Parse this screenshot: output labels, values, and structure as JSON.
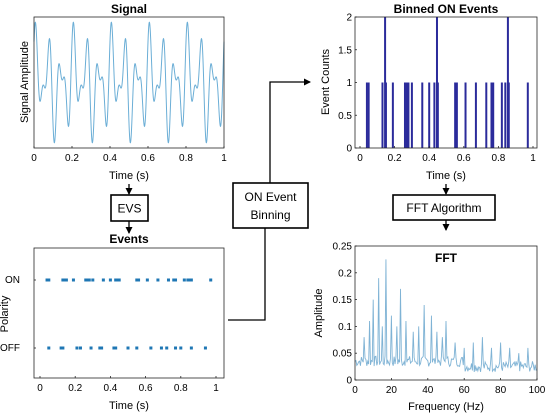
{
  "colors": {
    "signal": "#6baed6",
    "events": "#1f77b4",
    "bins": "#2b2b9b",
    "fft": "#7fb3d5"
  },
  "boxes": {
    "evs": "EVS",
    "binning_line1": "ON Event",
    "binning_line2": "Binning",
    "fft_algorithm": "FFT Algorithm"
  },
  "chart_data": [
    {
      "type": "line",
      "title": "Signal",
      "xlabel": "Time (s)",
      "ylabel": "Signal Amplitude",
      "xlim": [
        0,
        1
      ],
      "xticks": [
        "0",
        "0.2",
        "0.4",
        "0.6",
        "0.8",
        "1"
      ],
      "components": [
        {
          "frequency_hz": 15,
          "amplitude": 1.0
        },
        {
          "frequency_hz": 25,
          "amplitude": 0.6
        },
        {
          "frequency_hz": 5,
          "amplitude": 0.3
        }
      ]
    },
    {
      "type": "scatter",
      "title": "Events",
      "xlabel": "Time (s)",
      "ylabel": "Polarity",
      "xlim": [
        0,
        1
      ],
      "xticks": [
        "0",
        "0.2",
        "0.4",
        "0.6",
        "0.8",
        "1"
      ],
      "yticks": [
        "ON",
        "OFF"
      ],
      "on_events": [
        0.04,
        0.05,
        0.13,
        0.14,
        0.15,
        0.19,
        0.26,
        0.27,
        0.28,
        0.3,
        0.36,
        0.4,
        0.43,
        0.44,
        0.45,
        0.55,
        0.56,
        0.61,
        0.67,
        0.73,
        0.76,
        0.77,
        0.82,
        0.84,
        0.85,
        0.86,
        0.97
      ],
      "off_events": [
        0.05,
        0.12,
        0.13,
        0.21,
        0.23,
        0.29,
        0.34,
        0.35,
        0.42,
        0.43,
        0.5,
        0.55,
        0.63,
        0.69,
        0.72,
        0.77,
        0.8,
        0.86,
        0.94
      ]
    },
    {
      "type": "bar",
      "title": "Binned ON Events",
      "xlabel": "Time (s)",
      "ylabel": "Event Counts",
      "xlim": [
        0,
        1
      ],
      "ylim": [
        0,
        2
      ],
      "xticks": [
        "0",
        "0.2",
        "0.4",
        "0.6",
        "0.8",
        "1"
      ],
      "yticks": [
        "0",
        "0.5",
        "1",
        "1.5",
        "2"
      ],
      "bins": [
        {
          "t": 0.04,
          "v": 1
        },
        {
          "t": 0.05,
          "v": 1
        },
        {
          "t": 0.13,
          "v": 1
        },
        {
          "t": 0.145,
          "v": 2
        },
        {
          "t": 0.15,
          "v": 1
        },
        {
          "t": 0.19,
          "v": 1
        },
        {
          "t": 0.26,
          "v": 1
        },
        {
          "t": 0.27,
          "v": 1
        },
        {
          "t": 0.28,
          "v": 1
        },
        {
          "t": 0.3,
          "v": 1
        },
        {
          "t": 0.36,
          "v": 1
        },
        {
          "t": 0.4,
          "v": 1
        },
        {
          "t": 0.43,
          "v": 1
        },
        {
          "t": 0.445,
          "v": 2
        },
        {
          "t": 0.45,
          "v": 1
        },
        {
          "t": 0.55,
          "v": 1
        },
        {
          "t": 0.56,
          "v": 1
        },
        {
          "t": 0.61,
          "v": 1
        },
        {
          "t": 0.67,
          "v": 1
        },
        {
          "t": 0.73,
          "v": 1
        },
        {
          "t": 0.76,
          "v": 1
        },
        {
          "t": 0.77,
          "v": 1
        },
        {
          "t": 0.82,
          "v": 1
        },
        {
          "t": 0.84,
          "v": 1
        },
        {
          "t": 0.855,
          "v": 2
        },
        {
          "t": 0.86,
          "v": 1
        },
        {
          "t": 0.97,
          "v": 1
        }
      ]
    },
    {
      "type": "line",
      "title": "FFT",
      "xlabel": "Frequency (Hz)",
      "ylabel": "Amplitude",
      "xlim": [
        0,
        100
      ],
      "ylim": [
        0,
        0.25
      ],
      "xticks": [
        "0",
        "20",
        "40",
        "60",
        "80",
        "100"
      ],
      "yticks": [
        "0",
        "0.05",
        "0.1",
        "0.15",
        "0.2",
        "0.25"
      ],
      "peaks": [
        {
          "f": 5,
          "a": 0.08
        },
        {
          "f": 8,
          "a": 0.11
        },
        {
          "f": 10,
          "a": 0.15
        },
        {
          "f": 13,
          "a": 0.19
        },
        {
          "f": 15,
          "a": 0.1
        },
        {
          "f": 17,
          "a": 0.225
        },
        {
          "f": 20,
          "a": 0.12
        },
        {
          "f": 23,
          "a": 0.1
        },
        {
          "f": 25,
          "a": 0.17
        },
        {
          "f": 28,
          "a": 0.11
        },
        {
          "f": 32,
          "a": 0.09
        },
        {
          "f": 35,
          "a": 0.1
        },
        {
          "f": 38,
          "a": 0.14
        },
        {
          "f": 42,
          "a": 0.12
        },
        {
          "f": 45,
          "a": 0.09
        },
        {
          "f": 48,
          "a": 0.08
        },
        {
          "f": 50,
          "a": 0.11
        },
        {
          "f": 55,
          "a": 0.07
        },
        {
          "f": 60,
          "a": 0.06
        },
        {
          "f": 65,
          "a": 0.07
        },
        {
          "f": 70,
          "a": 0.08
        },
        {
          "f": 75,
          "a": 0.06
        },
        {
          "f": 80,
          "a": 0.07
        },
        {
          "f": 85,
          "a": 0.06
        },
        {
          "f": 90,
          "a": 0.05
        },
        {
          "f": 95,
          "a": 0.06
        }
      ],
      "baseline": 0.015
    }
  ]
}
